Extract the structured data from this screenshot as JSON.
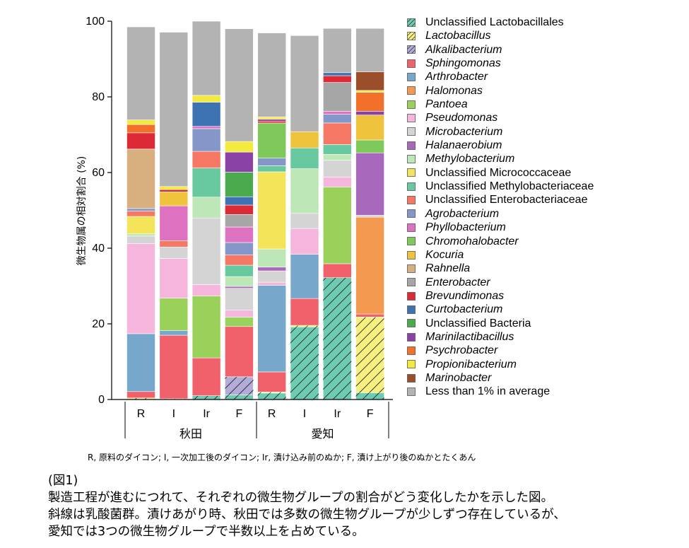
{
  "chart_data": {
    "type": "bar",
    "stacked": true,
    "ylabel": "微生物属の相対割合 (%)",
    "ylim": [
      0,
      100
    ],
    "yticks": [
      0,
      20,
      40,
      60,
      80,
      100
    ],
    "categories": [
      "R",
      "I",
      "Ir",
      "F",
      "R",
      "I",
      "Ir",
      "F"
    ],
    "groups": [
      {
        "label": "秋田",
        "categories": [
          "R",
          "I",
          "Ir",
          "F"
        ]
      },
      {
        "label": "愛知",
        "categories": [
          "R",
          "I",
          "Ir",
          "F"
        ]
      }
    ],
    "series": [
      {
        "name": "Unclassified Lactobacillales",
        "italic": false,
        "color": "#6ccbb0",
        "hatch": true,
        "values": [
          0,
          0,
          1,
          1.2,
          1.7,
          19.2,
          32.2,
          1.8
        ]
      },
      {
        "name": "Lactobacillus",
        "italic": true,
        "color": "#f7f07c",
        "hatch": true,
        "values": [
          0.4,
          0.2,
          0,
          0,
          0.3,
          0.4,
          0,
          20
        ]
      },
      {
        "name": "Alkalibacterium",
        "italic": true,
        "color": "#b3acd8",
        "hatch": true,
        "values": [
          0,
          0,
          0,
          4.8,
          0,
          0,
          0,
          0
        ]
      },
      {
        "name": "Sphingomonas",
        "italic": true,
        "color": "#f0616b",
        "hatch": false,
        "values": [
          1.7,
          16.8,
          10,
          13.3,
          5.3,
          7.1,
          3.7,
          0.8
        ]
      },
      {
        "name": "Arthrobacter",
        "italic": true,
        "color": "#77a8cc",
        "hatch": false,
        "values": [
          15.3,
          1.2,
          0,
          0,
          22.9,
          11.7,
          0,
          0
        ]
      },
      {
        "name": "Halomonas",
        "italic": true,
        "color": "#f39a50",
        "hatch": false,
        "values": [
          0,
          0,
          0,
          0,
          0,
          0,
          0,
          25.6
        ]
      },
      {
        "name": "Pantoea",
        "italic": true,
        "color": "#9ad15a",
        "hatch": false,
        "values": [
          0,
          8.6,
          16.4,
          2.5,
          0,
          0,
          20.3,
          0
        ]
      },
      {
        "name": "Pseudomonas",
        "italic": true,
        "color": "#f6b5dc",
        "hatch": false,
        "values": [
          23.8,
          10.5,
          3,
          1.8,
          0.8,
          6.8,
          2.6,
          0
        ]
      },
      {
        "name": "Microbacterium",
        "italic": true,
        "color": "#d4d4d4",
        "hatch": false,
        "values": [
          2,
          3,
          17.6,
          5.8,
          3,
          4,
          4.5,
          0.5
        ]
      },
      {
        "name": "Halanaerobium",
        "italic": true,
        "color": "#a869bd",
        "hatch": false,
        "values": [
          0,
          0,
          0,
          0.5,
          1,
          0,
          0,
          16.5
        ]
      },
      {
        "name": "Methylobacterium",
        "italic": true,
        "color": "#bde7b6",
        "hatch": false,
        "values": [
          0.6,
          0,
          5.5,
          2.6,
          4.8,
          11.8,
          1.5,
          0
        ]
      },
      {
        "name": "Unclassified Micrococcaceae",
        "italic": false,
        "color": "#f3e45a",
        "hatch": false,
        "values": [
          4.6,
          0,
          0,
          0,
          20.4,
          0,
          0,
          0
        ]
      },
      {
        "name": "Unclassified Methylobacteriaceae",
        "italic": false,
        "color": "#68c8a0",
        "hatch": false,
        "values": [
          0,
          0,
          7.7,
          3,
          1.6,
          5.5,
          2.6,
          0
        ]
      },
      {
        "name": "Unclassified Enterobacteriaceae",
        "italic": false,
        "color": "#f67764",
        "hatch": false,
        "values": [
          1.4,
          1.7,
          4.4,
          2.7,
          0,
          0,
          5.7,
          0
        ]
      },
      {
        "name": "Agrobacterium",
        "italic": true,
        "color": "#8597c8",
        "hatch": false,
        "values": [
          0.7,
          0,
          6,
          3.3,
          2,
          0,
          2.3,
          0
        ]
      },
      {
        "name": "Phyllobacterium",
        "italic": true,
        "color": "#df72c0",
        "hatch": false,
        "values": [
          0,
          9.2,
          0.6,
          4.1,
          0,
          0,
          0.8,
          0
        ]
      },
      {
        "name": "Chromohalobacter",
        "italic": true,
        "color": "#7fc95a",
        "hatch": false,
        "values": [
          0,
          0,
          0,
          0,
          9.3,
          0,
          0,
          3.4
        ]
      },
      {
        "name": "Kocuria",
        "italic": true,
        "color": "#f0c33c",
        "hatch": false,
        "values": [
          0,
          3.7,
          0,
          0,
          0,
          4.3,
          0,
          6.6
        ]
      },
      {
        "name": "Rahnella",
        "italic": true,
        "color": "#d8b07f",
        "hatch": false,
        "values": [
          15.7,
          0,
          0,
          0,
          0,
          0,
          0,
          0
        ]
      },
      {
        "name": "Enterobacter",
        "italic": true,
        "color": "#a6a6a6",
        "hatch": false,
        "values": [
          0,
          0,
          0,
          3.3,
          0,
          0,
          7.6,
          0
        ]
      },
      {
        "name": "Brevundimonas",
        "italic": true,
        "color": "#dc2a36",
        "hatch": false,
        "values": [
          4.3,
          0.6,
          0,
          2.5,
          0.5,
          0,
          1.8,
          0
        ]
      },
      {
        "name": "Curtobacterium",
        "italic": true,
        "color": "#3d73b2",
        "hatch": false,
        "values": [
          0,
          0,
          6.4,
          2.2,
          0,
          0,
          0.8,
          0
        ]
      },
      {
        "name": "Unclassified Bacteria",
        "italic": false,
        "color": "#4baa4d",
        "hatch": false,
        "values": [
          0,
          0,
          0,
          6.5,
          0,
          0,
          0,
          0
        ]
      },
      {
        "name": "Marinilactibacillus",
        "italic": true,
        "color": "#8a42a4",
        "hatch": false,
        "values": [
          0,
          0,
          0,
          5.3,
          0.5,
          0,
          0,
          1
        ]
      },
      {
        "name": "Psychrobacter",
        "italic": true,
        "color": "#f3702b",
        "hatch": false,
        "values": [
          2.2,
          0,
          0,
          0,
          0,
          0,
          0,
          5
        ]
      },
      {
        "name": "Propionibacterium",
        "italic": true,
        "color": "#f2ea3c",
        "hatch": false,
        "values": [
          1.2,
          0.8,
          1.8,
          2.8,
          0.6,
          0,
          0,
          0.5
        ]
      },
      {
        "name": "Marinobacter",
        "italic": true,
        "color": "#9b4e2a",
        "hatch": false,
        "values": [
          0,
          0,
          0,
          0,
          0,
          0,
          0,
          4.9
        ]
      },
      {
        "name": "Less than 1% in average",
        "italic": false,
        "color": "#b3b3b3",
        "hatch": false,
        "values": [
          24.6,
          40.8,
          19.6,
          29.8,
          22.2,
          25.4,
          11.7,
          11.5
        ]
      }
    ]
  },
  "footnote": "R, 原料のダイコン; I, 一次加工後のダイコン; Ir, 漬け込み前のぬか; F, 漬け上がり後のぬかとたくあん",
  "caption": {
    "title": "(図1)",
    "line1": "製造工程が進むにつれて、それぞれの微生物グループの割合がどう変化したかを示した図。",
    "line2": "斜線は乳酸菌群。漬けあがり時、秋田では多数の微生物グループが少しずつ存在しているが、",
    "line3": "愛知では3つの微生物グループで半数以上を占めている。"
  }
}
